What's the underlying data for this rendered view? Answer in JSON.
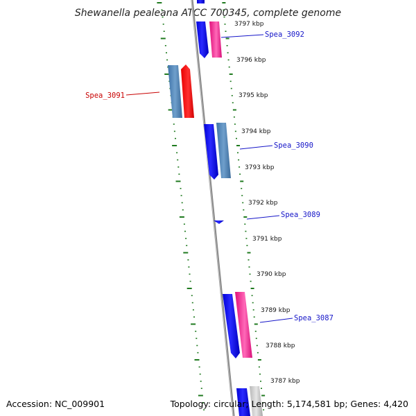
{
  "title": "Shewanella pealeana ATCC 700345, complete genome",
  "footer": {
    "accession": "Accession: NC_009901",
    "summary": "Topology: circular; Length: 5,174,581 bp; Genes: 4,420"
  },
  "colors": {
    "backbone": "#8a8a8a",
    "tick": "#1f7a1f",
    "label_blue": "#1414c8",
    "label_red": "#c80000"
  },
  "ticks": [
    {
      "label": "3797 kbp"
    },
    {
      "label": "3796 kbp"
    },
    {
      "label": "3795 kbp"
    },
    {
      "label": "3794 kbp"
    },
    {
      "label": "3793 kbp"
    },
    {
      "label": "3792 kbp"
    },
    {
      "label": "3791 kbp"
    },
    {
      "label": "3790 kbp"
    },
    {
      "label": "3789 kbp"
    },
    {
      "label": "3788 kbp"
    },
    {
      "label": "3787 kbp"
    }
  ],
  "gene_labels": [
    {
      "name": "Spea_3092",
      "color": "#1414c8"
    },
    {
      "name": "Spea_3091",
      "color": "#c80000"
    },
    {
      "name": "Spea_3090",
      "color": "#1414c8"
    },
    {
      "name": "Spea_3089",
      "color": "#1414c8"
    },
    {
      "name": "Spea_3087",
      "color": "#1414c8"
    }
  ]
}
